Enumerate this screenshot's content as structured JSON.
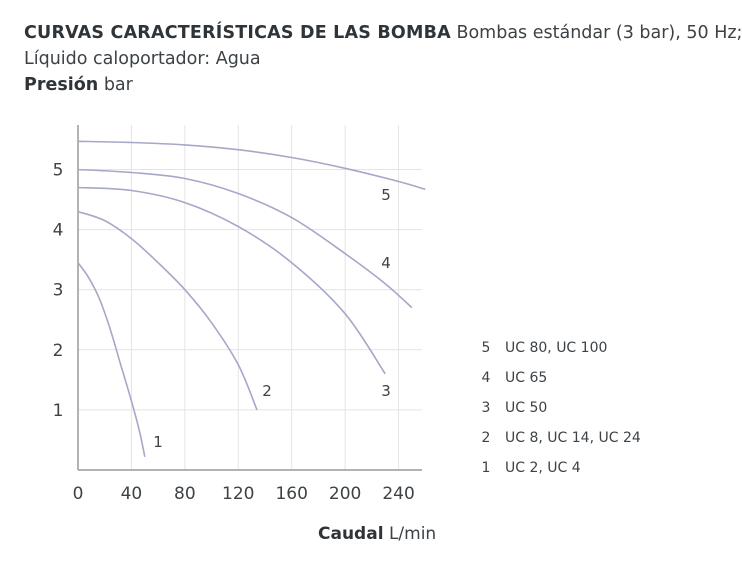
{
  "header": {
    "title_bold": "CURVAS CARACTERÍSTICAS DE LAS BOMBA",
    "title_rest": "Bombas estándar (3 bar), 50 Hz;",
    "subtitle": "Líquido caloportador: Agua",
    "ylabel_bold": "Presión",
    "ylabel_unit": "bar"
  },
  "footer": {
    "xlabel_bold": "Caudal",
    "xlabel_unit": "L/min"
  },
  "colors": {
    "curve": "#a5a8c7",
    "grid": "#e4e4e4",
    "axis": "#9a9a9a",
    "text": "#3c4246"
  },
  "chart_data": {
    "type": "line",
    "title": "CURVAS CARACTERÍSTICAS DE LAS BOMBA",
    "xlabel": "Caudal L/min",
    "ylabel": "Presión bar",
    "xlim": [
      0,
      260
    ],
    "ylim": [
      0,
      5.7
    ],
    "x_ticks": [
      0,
      40,
      80,
      120,
      160,
      200,
      240
    ],
    "y_ticks": [
      1,
      2,
      3,
      4,
      5
    ],
    "grid": true,
    "legend_position": "right",
    "series": [
      {
        "name": "1",
        "legend": "UC 2, UC 4",
        "curve_label": "1",
        "points": [
          [
            0,
            3.45
          ],
          [
            8,
            3.2
          ],
          [
            16,
            2.85
          ],
          [
            24,
            2.35
          ],
          [
            32,
            1.75
          ],
          [
            40,
            1.15
          ],
          [
            46,
            0.65
          ],
          [
            50,
            0.22
          ]
        ]
      },
      {
        "name": "2",
        "legend": "UC 8, UC 14, UC 24",
        "curve_label": "2",
        "points": [
          [
            0,
            4.3
          ],
          [
            20,
            4.15
          ],
          [
            40,
            3.85
          ],
          [
            60,
            3.45
          ],
          [
            80,
            3.0
          ],
          [
            100,
            2.45
          ],
          [
            120,
            1.75
          ],
          [
            134,
            1.0
          ]
        ]
      },
      {
        "name": "3",
        "legend": "UC 50",
        "curve_label": "3",
        "points": [
          [
            0,
            4.7
          ],
          [
            40,
            4.65
          ],
          [
            80,
            4.45
          ],
          [
            120,
            4.05
          ],
          [
            160,
            3.45
          ],
          [
            200,
            2.6
          ],
          [
            230,
            1.6
          ]
        ]
      },
      {
        "name": "4",
        "legend": "UC 65",
        "curve_label": "4",
        "points": [
          [
            0,
            5.0
          ],
          [
            40,
            4.95
          ],
          [
            80,
            4.85
          ],
          [
            120,
            4.6
          ],
          [
            160,
            4.2
          ],
          [
            200,
            3.6
          ],
          [
            230,
            3.1
          ],
          [
            250,
            2.7
          ]
        ]
      },
      {
        "name": "5",
        "legend": "UC 80, UC 100",
        "curve_label": "5",
        "points": [
          [
            0,
            5.47
          ],
          [
            40,
            5.45
          ],
          [
            80,
            5.41
          ],
          [
            120,
            5.33
          ],
          [
            160,
            5.2
          ],
          [
            200,
            5.02
          ],
          [
            240,
            4.8
          ],
          [
            260,
            4.67
          ]
        ]
      }
    ],
    "legend_order": [
      "5",
      "4",
      "3",
      "2",
      "1"
    ]
  }
}
